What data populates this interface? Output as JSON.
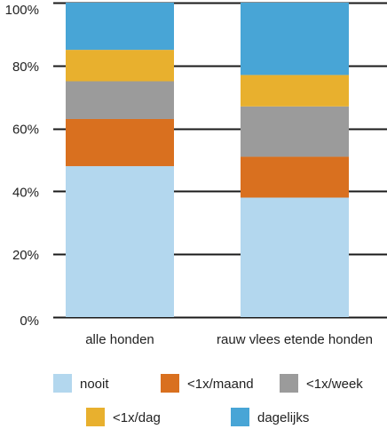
{
  "chart_data": {
    "type": "bar",
    "stacked": true,
    "percent_stacked": true,
    "categories": [
      "alle honden",
      "rauw vlees etende honden"
    ],
    "series": [
      {
        "name": "nooit",
        "values": [
          48,
          38
        ],
        "color": "#b3d7ee"
      },
      {
        "name": "<1x/maand",
        "values": [
          15,
          13
        ],
        "color": "#d9701f"
      },
      {
        "name": "<1x/week",
        "values": [
          12,
          16
        ],
        "color": "#9b9b9b"
      },
      {
        "name": "<1x/dag",
        "values": [
          10,
          10
        ],
        "color": "#e8b02e"
      },
      {
        "name": "dagelijks",
        "values": [
          15,
          23
        ],
        "color": "#48a5d6"
      }
    ],
    "ylim": [
      0,
      100
    ],
    "yticks": [
      "0%",
      "20%",
      "40%",
      "60%",
      "80%",
      "100%"
    ],
    "grid": true,
    "legend_position": "bottom",
    "title": "",
    "xlabel": "",
    "ylabel": ""
  }
}
